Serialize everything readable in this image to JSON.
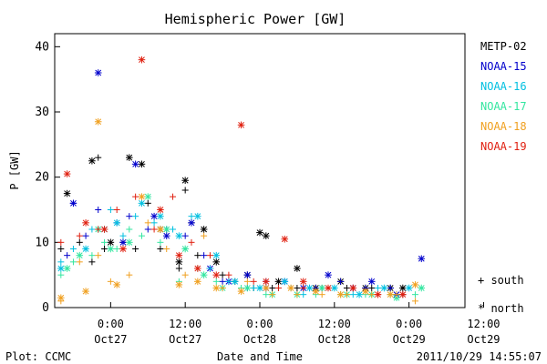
{
  "footer": {
    "plot_credit": "Plot: CCMC",
    "timestamp": "2011/10/29 14:55:07"
  },
  "chart_data": {
    "type": "scatter",
    "title": "Hemispheric Power [GW]",
    "xlabel": "Date and Time",
    "ylabel": "P [GW]",
    "ylim": [
      0,
      42
    ],
    "xlim_hours_from_oct27_0000": [
      -9,
      57
    ],
    "yticks": [
      0,
      10,
      20,
      30,
      40
    ],
    "xticks": [
      {
        "h": 0,
        "time": "0:00",
        "date": "Oct27"
      },
      {
        "h": 12,
        "time": "12:00",
        "date": "Oct27"
      },
      {
        "h": 24,
        "time": "0:00",
        "date": "Oct28"
      },
      {
        "h": 36,
        "time": "12:00",
        "date": "Oct28"
      },
      {
        "h": 48,
        "time": "0:00",
        "date": "Oct29"
      },
      {
        "h": 60,
        "time": "12:00",
        "date": "Oct29"
      }
    ],
    "grid": false,
    "legend_position": "right",
    "marker_legend": [
      {
        "symbol": "+",
        "label": "south"
      },
      {
        "symbol": "*",
        "label": "north"
      }
    ],
    "colors": {
      "METP-02": "#000000",
      "NOAA-15": "#0000cc",
      "NOAA-16": "#00c0e0",
      "NOAA-17": "#33e6a0",
      "NOAA-18": "#f0a020",
      "NOAA-19": "#e02010"
    },
    "series": [
      {
        "name": "METP-02",
        "south": [
          [
            -8,
            9
          ],
          [
            -5,
            10
          ],
          [
            -3,
            7
          ],
          [
            -2,
            23
          ],
          [
            -1,
            9
          ],
          [
            2,
            10
          ],
          [
            4,
            9
          ],
          [
            6,
            16
          ],
          [
            8,
            9
          ],
          [
            11,
            6
          ],
          [
            12,
            18
          ],
          [
            13,
            13
          ],
          [
            14,
            8
          ],
          [
            18,
            5
          ],
          [
            20,
            4
          ],
          [
            23,
            3
          ],
          [
            26,
            3
          ],
          [
            30,
            3
          ],
          [
            34,
            3
          ],
          [
            38,
            3
          ],
          [
            42,
            3
          ],
          [
            46,
            2
          ]
        ],
        "north": [
          [
            -7,
            17.5
          ],
          [
            -3,
            22.5
          ],
          [
            0,
            10
          ],
          [
            3,
            23
          ],
          [
            5,
            22
          ],
          [
            8,
            12
          ],
          [
            11,
            7
          ],
          [
            12,
            19.5
          ],
          [
            15,
            12
          ],
          [
            17,
            7
          ],
          [
            22,
            5
          ],
          [
            24,
            11.5
          ],
          [
            25,
            11
          ],
          [
            27,
            4
          ],
          [
            30,
            6
          ],
          [
            33,
            3
          ],
          [
            37,
            4
          ],
          [
            41,
            3
          ],
          [
            45,
            3
          ],
          [
            47,
            3
          ]
        ]
      },
      {
        "name": "NOAA-15",
        "south": [
          [
            -7,
            8
          ],
          [
            -6,
            16
          ],
          [
            -4,
            11
          ],
          [
            -2,
            15
          ],
          [
            1,
            13
          ],
          [
            3,
            14
          ],
          [
            6,
            12
          ],
          [
            9,
            12
          ],
          [
            12,
            11
          ],
          [
            15,
            8
          ],
          [
            18,
            4
          ],
          [
            22,
            3
          ],
          [
            25,
            4
          ],
          [
            29,
            3
          ],
          [
            33,
            3
          ],
          [
            37,
            4
          ],
          [
            41,
            3
          ],
          [
            45,
            3
          ]
        ],
        "north": [
          [
            -6,
            16
          ],
          [
            -2,
            36
          ],
          [
            2,
            10
          ],
          [
            4,
            22
          ],
          [
            7,
            14
          ],
          [
            9,
            11
          ],
          [
            13,
            13
          ],
          [
            16,
            6
          ],
          [
            19,
            4
          ],
          [
            22,
            5
          ],
          [
            25,
            3
          ],
          [
            28,
            4
          ],
          [
            31,
            3
          ],
          [
            35,
            5
          ],
          [
            39,
            3
          ],
          [
            42,
            4
          ],
          [
            46,
            2
          ],
          [
            50,
            7.5
          ]
        ]
      },
      {
        "name": "NOAA-16",
        "south": [
          [
            -8,
            7
          ],
          [
            -6,
            9
          ],
          [
            -3,
            12
          ],
          [
            0,
            15
          ],
          [
            2,
            11
          ],
          [
            4,
            14
          ],
          [
            7,
            13
          ],
          [
            10,
            12
          ],
          [
            13,
            14
          ],
          [
            16,
            6
          ],
          [
            19,
            4
          ],
          [
            23,
            3
          ],
          [
            27,
            3
          ],
          [
            31,
            2
          ],
          [
            35,
            3
          ],
          [
            39,
            2
          ],
          [
            43,
            3
          ],
          [
            47,
            2
          ]
        ],
        "north": [
          [
            -8,
            6
          ],
          [
            -4,
            9
          ],
          [
            -1,
            12
          ],
          [
            1,
            13
          ],
          [
            5,
            16
          ],
          [
            8,
            14
          ],
          [
            11,
            11
          ],
          [
            14,
            14
          ],
          [
            17,
            8
          ],
          [
            20,
            4
          ],
          [
            24,
            3
          ],
          [
            28,
            4
          ],
          [
            32,
            3
          ],
          [
            36,
            3
          ],
          [
            40,
            2
          ],
          [
            44,
            3
          ],
          [
            48,
            3
          ]
        ]
      },
      {
        "name": "NOAA-17",
        "south": [
          [
            -8,
            5
          ],
          [
            -6,
            7
          ],
          [
            -3,
            8
          ],
          [
            -1,
            10
          ],
          [
            1,
            9
          ],
          [
            3,
            12
          ],
          [
            5,
            11
          ],
          [
            8,
            10
          ],
          [
            11,
            4
          ],
          [
            14,
            6
          ],
          [
            17,
            4
          ],
          [
            21,
            3
          ],
          [
            25,
            2
          ],
          [
            29,
            3
          ],
          [
            33,
            2
          ],
          [
            37,
            2
          ],
          [
            41,
            2
          ],
          [
            45,
            2
          ],
          [
            49,
            2
          ]
        ],
        "north": [
          [
            -7,
            6
          ],
          [
            -5,
            8
          ],
          [
            -2,
            12
          ],
          [
            0,
            9
          ],
          [
            3,
            10
          ],
          [
            6,
            17
          ],
          [
            9,
            12
          ],
          [
            12,
            9
          ],
          [
            15,
            5
          ],
          [
            18,
            3
          ],
          [
            22,
            3
          ],
          [
            26,
            2
          ],
          [
            30,
            2
          ],
          [
            34,
            3
          ],
          [
            38,
            2
          ],
          [
            42,
            2
          ],
          [
            46,
            1.5
          ],
          [
            50,
            3
          ]
        ]
      },
      {
        "name": "NOAA-18",
        "south": [
          [
            -8,
            1
          ],
          [
            -5,
            7
          ],
          [
            -2,
            8
          ],
          [
            0,
            4
          ],
          [
            3,
            5
          ],
          [
            6,
            13
          ],
          [
            9,
            9
          ],
          [
            12,
            5
          ],
          [
            15,
            11
          ],
          [
            18,
            3
          ],
          [
            22,
            4
          ],
          [
            26,
            2
          ],
          [
            30,
            2
          ],
          [
            34,
            2
          ],
          [
            38,
            2
          ],
          [
            42,
            2
          ],
          [
            46,
            2
          ],
          [
            49,
            1
          ]
        ],
        "north": [
          [
            -8,
            1.5
          ],
          [
            -4,
            2.5
          ],
          [
            -2,
            28.5
          ],
          [
            1,
            3.5
          ],
          [
            5,
            17
          ],
          [
            8,
            12
          ],
          [
            11,
            3.5
          ],
          [
            14,
            4
          ],
          [
            17,
            3
          ],
          [
            21,
            2.5
          ],
          [
            25,
            3
          ],
          [
            29,
            3
          ],
          [
            33,
            2.5
          ],
          [
            37,
            2
          ],
          [
            41,
            2.5
          ],
          [
            45,
            2
          ],
          [
            49,
            3.5
          ]
        ]
      },
      {
        "name": "NOAA-19",
        "south": [
          [
            -8,
            10
          ],
          [
            -5,
            11
          ],
          [
            -2,
            12
          ],
          [
            1,
            15
          ],
          [
            4,
            17
          ],
          [
            7,
            12
          ],
          [
            10,
            17
          ],
          [
            13,
            10
          ],
          [
            16,
            8
          ],
          [
            19,
            5
          ],
          [
            23,
            4
          ],
          [
            27,
            3
          ],
          [
            31,
            3
          ],
          [
            35,
            3
          ],
          [
            39,
            3
          ],
          [
            43,
            2
          ],
          [
            47,
            2
          ]
        ],
        "north": [
          [
            -7,
            20.5
          ],
          [
            -4,
            13
          ],
          [
            -1,
            12
          ],
          [
            2,
            9
          ],
          [
            5,
            38
          ],
          [
            8,
            15
          ],
          [
            11,
            8
          ],
          [
            14,
            6
          ],
          [
            17,
            5
          ],
          [
            21,
            28
          ],
          [
            25,
            4
          ],
          [
            28,
            10.5
          ],
          [
            31,
            4
          ],
          [
            35,
            3
          ],
          [
            39,
            3
          ],
          [
            43,
            2
          ],
          [
            47,
            2
          ]
        ]
      }
    ]
  }
}
